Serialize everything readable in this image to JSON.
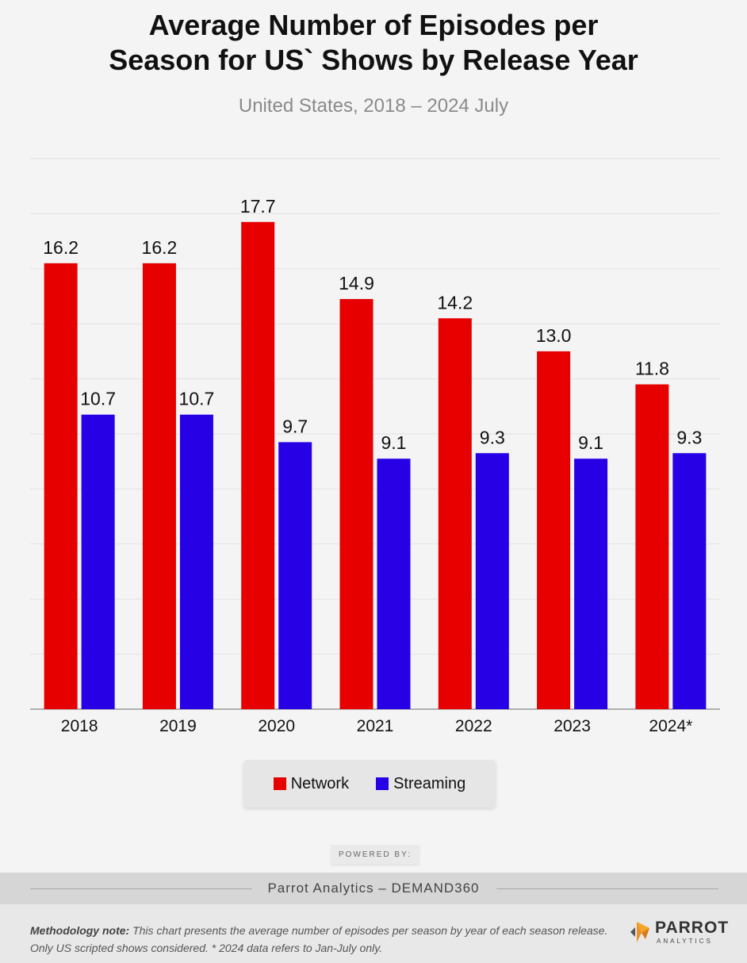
{
  "title_line1": "Average Number of Episodes per",
  "title_line2": "Season for US` Shows by Release Year",
  "subtitle": "United States, 2018 – 2024 July",
  "chart_data": {
    "type": "bar",
    "categories": [
      "2018",
      "2019",
      "2020",
      "2021",
      "2022",
      "2023",
      "2024*"
    ],
    "series": [
      {
        "name": "Network",
        "color": "#e60000",
        "values": [
          16.2,
          16.2,
          17.7,
          14.9,
          14.2,
          13.0,
          11.8
        ]
      },
      {
        "name": "Streaming",
        "color": "#2800e6",
        "values": [
          10.7,
          10.7,
          9.7,
          9.1,
          9.3,
          9.1,
          9.3
        ]
      }
    ],
    "value_labels": [
      [
        "16.2",
        "16.2",
        "17.7",
        "14.9",
        "14.2",
        "13.0",
        "11.8"
      ],
      [
        "10.7",
        "10.7",
        "9.7",
        "9.1",
        "9.3",
        "9.1",
        "9.3"
      ]
    ],
    "ylim": [
      0,
      20
    ],
    "grid": true,
    "legend_position": "bottom"
  },
  "legend": {
    "network_label": "Network",
    "streaming_label": "Streaming"
  },
  "powered_by": "POWERED BY:",
  "attribution": "Parrot Analytics – DEMAND360",
  "methodology_label": "Methodology note:",
  "methodology_text": " This chart presents the average number of episodes per season by year of each season release. Only US scripted shows considered. * 2024 data refers to Jan-July only.",
  "logo": {
    "word": "PARROT",
    "sub": "ANALYTICS"
  },
  "icons": {
    "logo_mark": "parrot-logo-icon"
  }
}
